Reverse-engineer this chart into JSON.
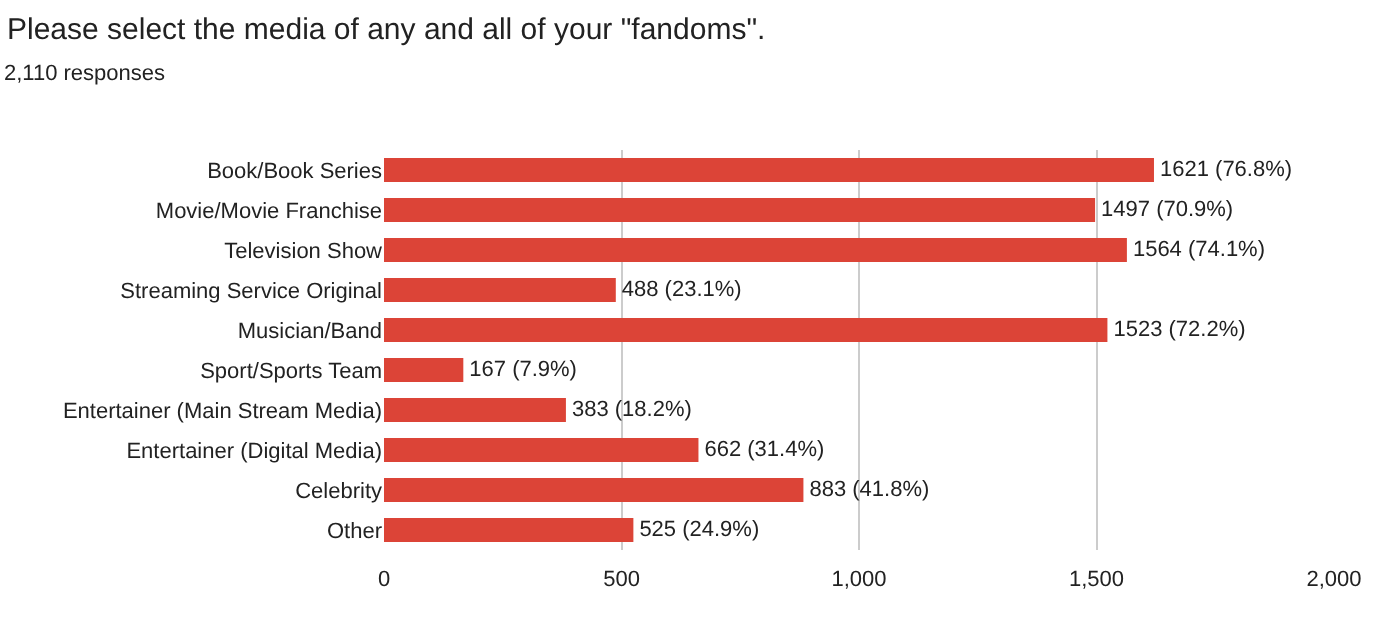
{
  "chart_data": {
    "type": "bar",
    "orientation": "horizontal",
    "title": "Please select the media of any and all of your \"fandoms\".",
    "subtitle": "2,110 responses",
    "categories": [
      "Book/Book Series",
      "Movie/Movie Franchise",
      "Television Show",
      "Streaming Service Original",
      "Musician/Band",
      "Sport/Sports Team",
      "Entertainer (Main Stream Media)",
      "Entertainer (Digital Media)",
      "Celebrity",
      "Other"
    ],
    "values": [
      1621,
      1497,
      1564,
      488,
      1523,
      167,
      383,
      662,
      883,
      525
    ],
    "value_labels": [
      "1621 (76.8%)",
      "1497 (70.9%)",
      "1564 (74.1%)",
      "488 (23.1%)",
      "1523 (72.2%)",
      "167 (7.9%)",
      "383 (18.2%)",
      "662 (31.4%)",
      "883 (41.8%)",
      "525 (24.9%)"
    ],
    "color": "#dc4437",
    "xlim": [
      0,
      2000
    ],
    "xticks": [
      0,
      500,
      {
        "value": 1000,
        "label": "1,000"
      },
      {
        "value": 1500,
        "label": "1,500"
      },
      {
        "value": 2000,
        "label": "2,000"
      }
    ],
    "grid": "x",
    "legend": false
  }
}
